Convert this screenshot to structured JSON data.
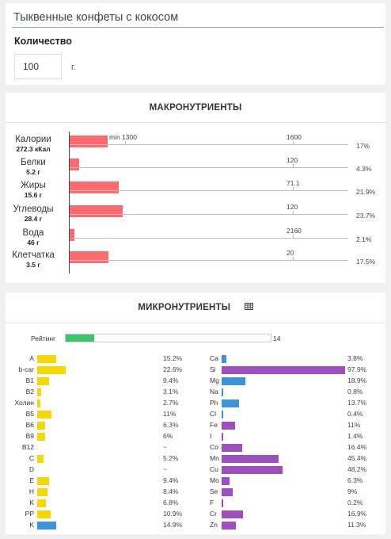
{
  "product": {
    "title": "Тыквенные конфеты с кокосом",
    "quantity_label": "Количество",
    "quantity_value": "100",
    "quantity_unit": "г."
  },
  "macro": {
    "heading": "МАКРОНУТРИЕНТЫ",
    "rows": [
      {
        "name": "Калории",
        "amount": "272.3 кКал",
        "percent": "17%",
        "pct": 17,
        "norm_label": "1600",
        "min_label": "min 1300"
      },
      {
        "name": "Белки",
        "amount": "5.2 г",
        "percent": "4.3%",
        "pct": 4.3,
        "norm_label": "120"
      },
      {
        "name": "Жиры",
        "amount": "15.6 г",
        "percent": "21.9%",
        "pct": 21.9,
        "norm_label": "71.1"
      },
      {
        "name": "Углеводы",
        "amount": "28.4 г",
        "percent": "23.7%",
        "pct": 23.7,
        "norm_label": "120"
      },
      {
        "name": "Вода",
        "amount": "46 г",
        "percent": "2.1%",
        "pct": 2.1,
        "norm_label": "2160"
      },
      {
        "name": "Клетчатка",
        "amount": "3.5 г",
        "percent": "17.5%",
        "pct": 17.5,
        "norm_label": "20"
      }
    ],
    "bar_color": "#fd6b6e"
  },
  "micro": {
    "heading": "МИКРОНУТРИЕНТЫ",
    "table_icon": "table-icon",
    "rating_label": "Рейтинг",
    "rating_value": "14",
    "rating_fraction": 0.14,
    "rating_color": "#3cc56b",
    "colors": {
      "yellow": "#f5d800",
      "blue": "#3b93d8",
      "purple": "#9c4fbd"
    },
    "left": [
      {
        "name": "A",
        "value": "15.2%",
        "pct": 15.2,
        "color": "yellow"
      },
      {
        "name": "b-car",
        "value": "22.6%",
        "pct": 22.6,
        "color": "yellow"
      },
      {
        "name": "B1",
        "value": "9.4%",
        "pct": 9.4,
        "color": "yellow"
      },
      {
        "name": "B2",
        "value": "3.1%",
        "pct": 3.1,
        "color": "yellow"
      },
      {
        "name": "Холин",
        "value": "2.7%",
        "pct": 2.7,
        "color": "yellow"
      },
      {
        "name": "B5",
        "value": "11%",
        "pct": 11,
        "color": "yellow"
      },
      {
        "name": "B6",
        "value": "6.3%",
        "pct": 6.3,
        "color": "yellow"
      },
      {
        "name": "B9",
        "value": "6%",
        "pct": 6,
        "color": "yellow"
      },
      {
        "name": "B12",
        "value": "~",
        "pct": 0,
        "color": "yellow"
      },
      {
        "name": "C",
        "value": "5.2%",
        "pct": 5.2,
        "color": "yellow"
      },
      {
        "name": "D",
        "value": "~",
        "pct": 0,
        "color": "yellow"
      },
      {
        "name": "E",
        "value": "9.4%",
        "pct": 9.4,
        "color": "yellow"
      },
      {
        "name": "H",
        "value": "8.4%",
        "pct": 8.4,
        "color": "yellow"
      },
      {
        "name": "K",
        "value": "6.8%",
        "pct": 6.8,
        "color": "yellow"
      },
      {
        "name": "PP",
        "value": "10.9%",
        "pct": 10.9,
        "color": "yellow"
      },
      {
        "name": "K",
        "value": "14.9%",
        "pct": 14.9,
        "color": "blue"
      }
    ],
    "right": [
      {
        "name": "Ca",
        "value": "3.8%",
        "pct": 3.8,
        "color": "blue"
      },
      {
        "name": "Si",
        "value": "97.9%",
        "pct": 97.9,
        "color": "purple"
      },
      {
        "name": "Mg",
        "value": "18.9%",
        "pct": 18.9,
        "color": "blue"
      },
      {
        "name": "Na",
        "value": "0.8%",
        "pct": 0.8,
        "color": "blue"
      },
      {
        "name": "Ph",
        "value": "13.7%",
        "pct": 13.7,
        "color": "blue"
      },
      {
        "name": "Cl",
        "value": "0.4%",
        "pct": 0.4,
        "color": "blue"
      },
      {
        "name": "Fe",
        "value": "11%",
        "pct": 11,
        "color": "purple"
      },
      {
        "name": "I",
        "value": "1.4%",
        "pct": 1.4,
        "color": "purple"
      },
      {
        "name": "Co",
        "value": "16.4%",
        "pct": 16.4,
        "color": "purple"
      },
      {
        "name": "Mn",
        "value": "45.4%",
        "pct": 45.4,
        "color": "purple"
      },
      {
        "name": "Cu",
        "value": "48.2%",
        "pct": 48.2,
        "color": "purple"
      },
      {
        "name": "Mo",
        "value": "6.3%",
        "pct": 6.3,
        "color": "purple"
      },
      {
        "name": "Se",
        "value": "9%",
        "pct": 9,
        "color": "purple"
      },
      {
        "name": "F",
        "value": "0.2%",
        "pct": 0.2,
        "color": "purple"
      },
      {
        "name": "Cr",
        "value": "16.9%",
        "pct": 16.9,
        "color": "purple"
      },
      {
        "name": "Zn",
        "value": "11.3%",
        "pct": 11.3,
        "color": "purple"
      }
    ]
  }
}
